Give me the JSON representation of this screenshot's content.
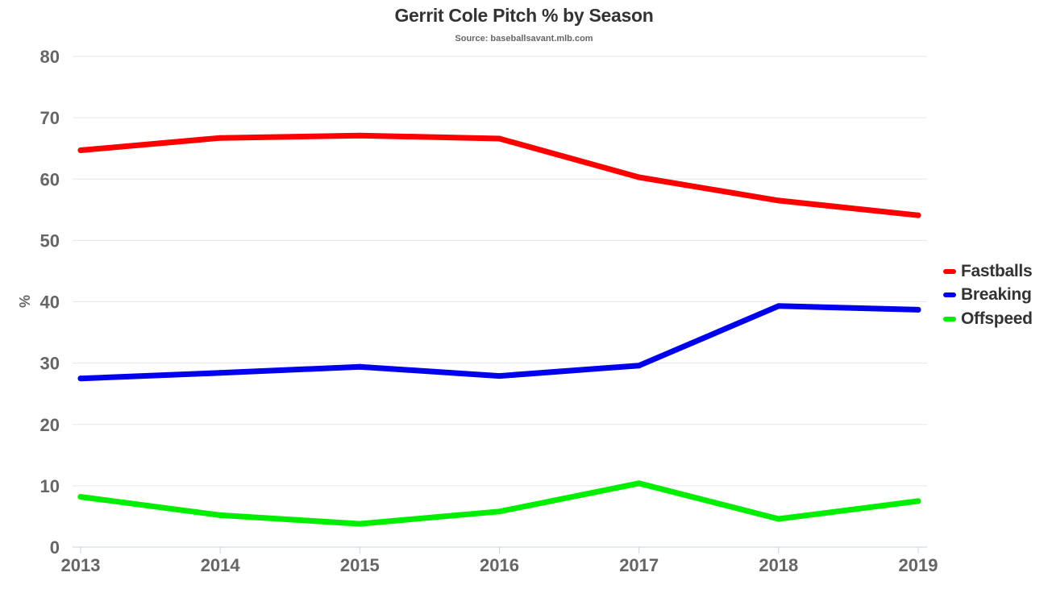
{
  "chart_data": {
    "type": "line",
    "title": "Gerrit Cole Pitch % by Season",
    "subtitle": "Source: baseballsavant.mlb.com",
    "xlabel": "",
    "ylabel": "%",
    "x": [
      "2013",
      "2014",
      "2015",
      "2016",
      "2017",
      "2018",
      "2019"
    ],
    "ylim": [
      0,
      80
    ],
    "yticks": [
      "0",
      "10",
      "20",
      "30",
      "40",
      "50",
      "60",
      "70",
      "80"
    ],
    "grid": true,
    "legend_position": "right",
    "series": [
      {
        "name": "Fastballs",
        "color": "#ff0000",
        "values": [
          64.7,
          66.7,
          67.1,
          66.6,
          60.3,
          56.5,
          54.1
        ]
      },
      {
        "name": "Breaking",
        "color": "#0000ee",
        "values": [
          27.5,
          28.4,
          29.4,
          27.9,
          29.6,
          39.3,
          38.7
        ]
      },
      {
        "name": "Offspeed",
        "color": "#00ee00",
        "values": [
          8.2,
          5.2,
          3.8,
          5.8,
          10.4,
          4.6,
          7.5
        ]
      }
    ]
  }
}
